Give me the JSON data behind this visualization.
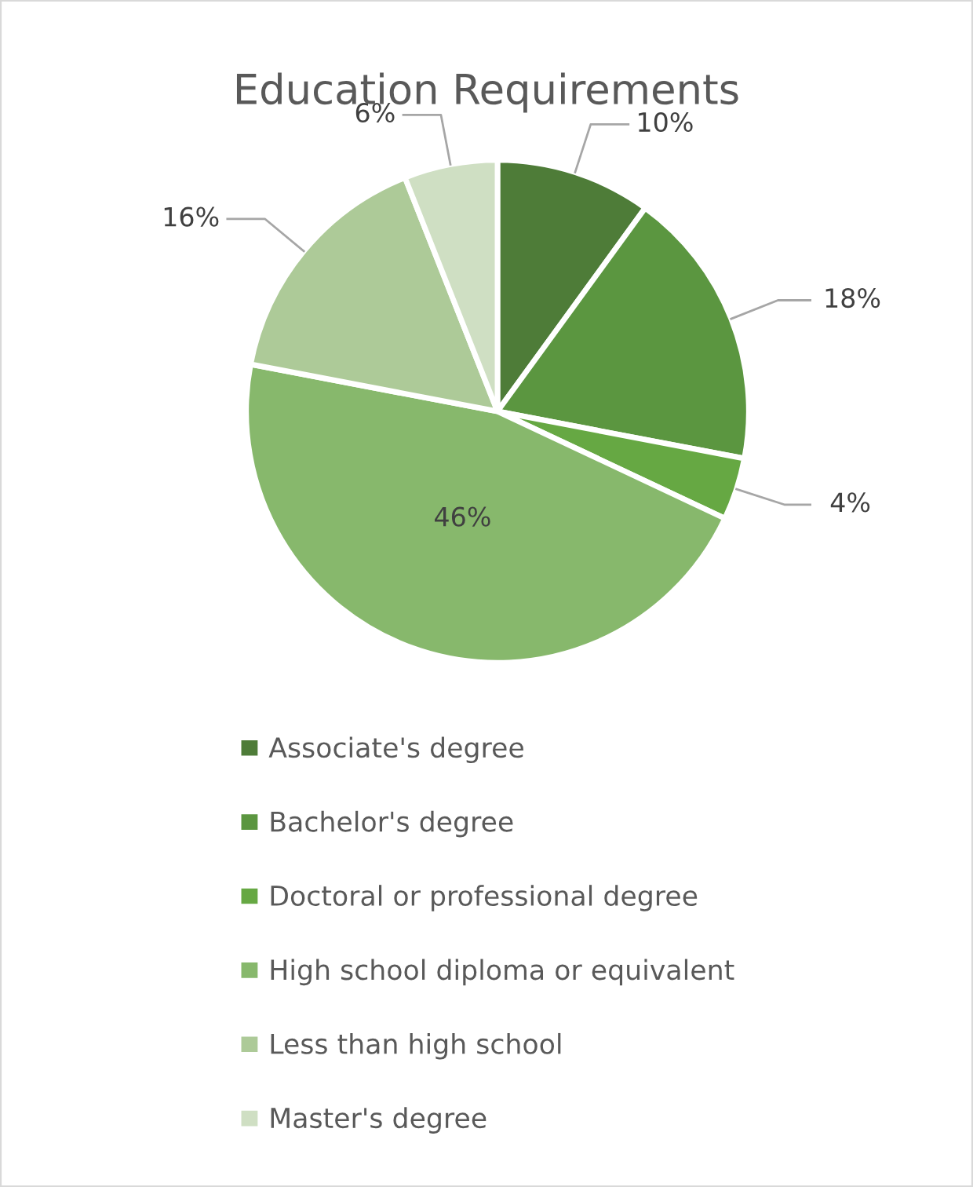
{
  "chart_data": {
    "type": "pie",
    "title": "Education Requirements",
    "categories": [
      "Associate's degree",
      "Bachelor's degree",
      "Doctoral or professional degree",
      "High school diploma or equivalent",
      "Less than high school",
      "Master's degree"
    ],
    "values": [
      10,
      18,
      4,
      46,
      16,
      6
    ],
    "colors": [
      "#4e7c38",
      "#5b9640",
      "#66a843",
      "#87b86c",
      "#adca98",
      "#cfdfc3"
    ],
    "value_labels": [
      "10%",
      "18%",
      "4%",
      "46%",
      "16%",
      "6%"
    ],
    "legend": "bottom"
  }
}
